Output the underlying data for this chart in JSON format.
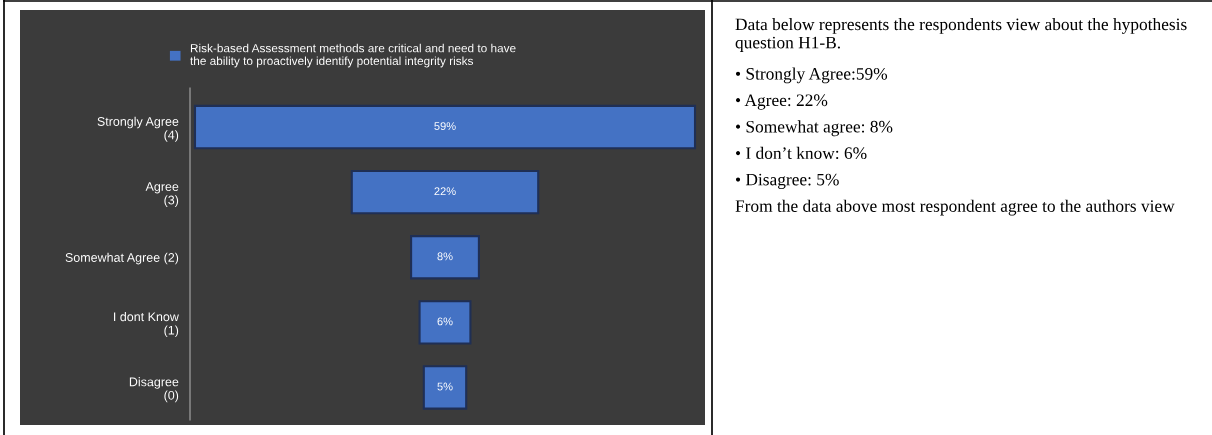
{
  "chart_data": [
    {
      "type": "other",
      "categories": [
        "Strongly Agree\n(4)",
        "Agree\n(3)",
        "Somewhat Agree (2)",
        "I dont Know\n(1)",
        "Disagree\n(0)"
      ],
      "series": [
        {
          "name": "Risk-based Assessment methods are critical and need to have the ability to proactively identify potential integrity risks",
          "color": "#4472c4",
          "values": [
            59,
            22,
            8,
            6,
            5
          ],
          "value_labels": [
            "59%",
            "22%",
            "8%",
            "6%",
            "5%"
          ]
        }
      ],
      "data_labels": true,
      "legend": "top"
    },
    {
      "type": "other",
      "annotations": [
        "Data below represents the respondents view about the hypothesis question H1-B.",
        "• Strongly Agree:59%",
        "• Agree: 22%",
        "• Somewhat agree: 8%",
        "• I don’t know: 6%",
        "• Disagree: 5%",
        "From the data above most respondent agree to the authors view"
      ]
    }
  ]
}
